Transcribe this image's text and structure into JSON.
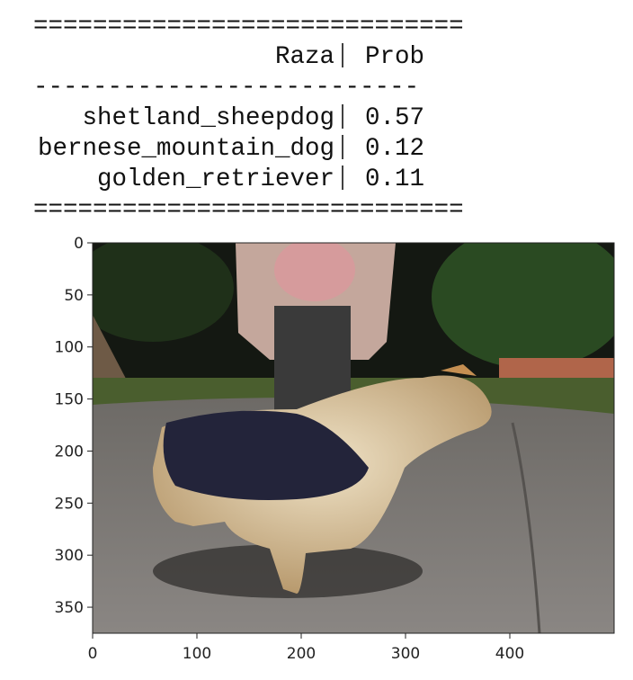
{
  "output_table": {
    "top_rule": "=============================",
    "header": [
      "Raza",
      "Prob"
    ],
    "mid_rule": "--------------------------",
    "rows": [
      [
        "shetland_sheepdog",
        0.57
      ],
      [
        "bernese_mountain_dog",
        0.12
      ],
      [
        "golden_retriever",
        0.11
      ]
    ],
    "bottom_rule": "============================="
  },
  "image_axes": {
    "xlim": [
      0,
      500
    ],
    "ylim": [
      0,
      375
    ],
    "y_inverted": true,
    "xticks": [
      0,
      100,
      200,
      300,
      400
    ],
    "yticks": [
      0,
      50,
      100,
      150,
      200,
      250,
      300,
      350
    ]
  }
}
